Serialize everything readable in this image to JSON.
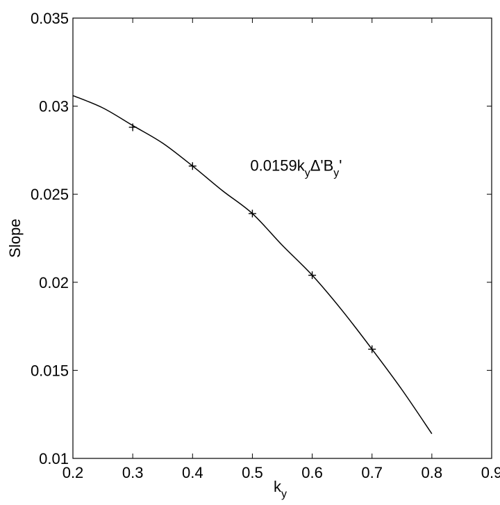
{
  "chart_data": {
    "type": "line",
    "xlabel": "k",
    "xlabel_sub": "y",
    "ylabel": "Slope",
    "xlim": [
      0.2,
      0.9
    ],
    "ylim": [
      0.01,
      0.035
    ],
    "x_ticks": [
      0.2,
      0.3,
      0.4,
      0.5,
      0.6,
      0.7,
      0.8,
      0.9
    ],
    "x_tick_labels": [
      "0.2",
      "0.3",
      "0.4",
      "0.5",
      "0.6",
      "0.7",
      "0.8",
      "0.9"
    ],
    "y_ticks": [
      0.01,
      0.015,
      0.02,
      0.025,
      0.03,
      0.035
    ],
    "y_tick_labels": [
      "0.01",
      "0.015",
      "0.02",
      "0.025",
      "0.03",
      "0.035"
    ],
    "grid": false,
    "series": [
      {
        "style": "curve",
        "x": [
          0.2,
          0.25,
          0.3,
          0.35,
          0.4,
          0.45,
          0.5,
          0.55,
          0.6,
          0.65,
          0.7,
          0.75,
          0.8
        ],
        "y": [
          0.0306,
          0.0299,
          0.0289,
          0.0279,
          0.0266,
          0.0252,
          0.0239,
          0.0221,
          0.0204,
          0.0184,
          0.0162,
          0.0139,
          0.0114
        ]
      },
      {
        "style": "plus-markers",
        "x": [
          0.3,
          0.4,
          0.5,
          0.6,
          0.7
        ],
        "y": [
          0.0288,
          0.0266,
          0.0239,
          0.0204,
          0.0162
        ]
      }
    ],
    "annotation": {
      "parts": [
        {
          "text": "0.0159k",
          "role": "base"
        },
        {
          "text": "y",
          "role": "sub"
        },
        {
          "text": "Δ'B",
          "role": "base"
        },
        {
          "text": "y",
          "role": "sub"
        },
        {
          "text": "'",
          "role": "base"
        }
      ],
      "x": 0.5,
      "y": 0.0266
    }
  }
}
